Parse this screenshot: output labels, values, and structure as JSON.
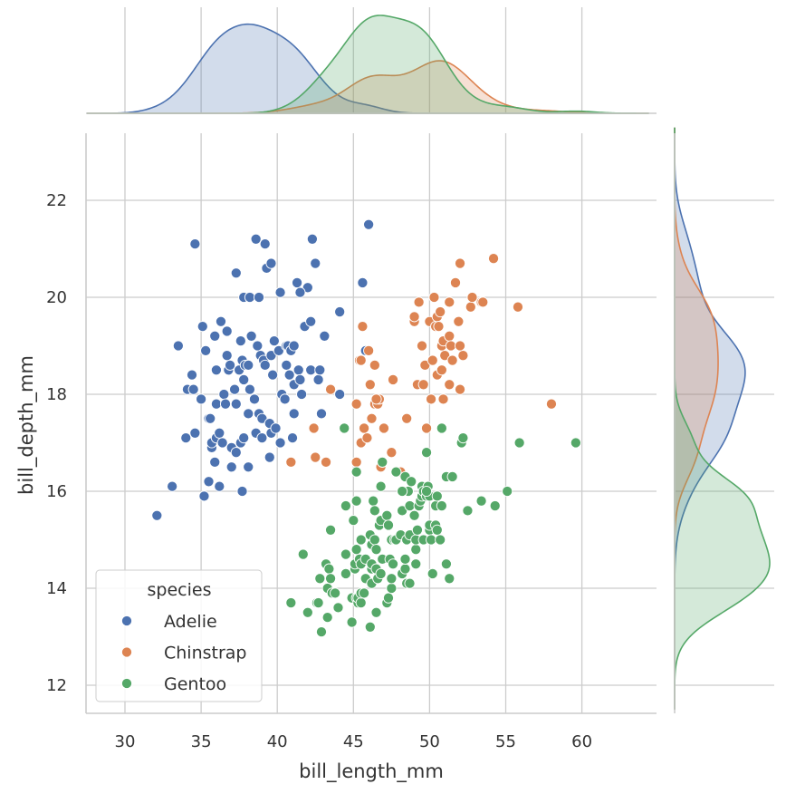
{
  "chart_data": {
    "type": "scatter",
    "xlabel": "bill_length_mm",
    "ylabel": "bill_depth_mm",
    "xlim": [
      27.5,
      64.5
    ],
    "ylim": [
      11.5,
      23.5
    ],
    "x_ticks": [
      30,
      35,
      40,
      45,
      50,
      55,
      60
    ],
    "y_ticks": [
      12,
      14,
      16,
      18,
      20,
      22
    ],
    "grid": true,
    "legend": {
      "title": "species",
      "placement": "lower-left"
    },
    "marginals": {
      "top": "kde of bill_length_mm by species",
      "right": "kde of bill_depth_mm by species"
    },
    "series": [
      {
        "name": "Adelie",
        "color": "#4c72b0",
        "points": [
          [
            32.1,
            15.5
          ],
          [
            33.1,
            16.1
          ],
          [
            33.5,
            19.0
          ],
          [
            34.0,
            17.1
          ],
          [
            34.1,
            18.1
          ],
          [
            34.4,
            18.4
          ],
          [
            34.5,
            18.1
          ],
          [
            34.6,
            17.2
          ],
          [
            34.6,
            21.1
          ],
          [
            35.0,
            17.9
          ],
          [
            35.1,
            19.4
          ],
          [
            35.2,
            15.9
          ],
          [
            35.3,
            18.9
          ],
          [
            35.5,
            16.2
          ],
          [
            35.5,
            17.5
          ],
          [
            35.6,
            17.5
          ],
          [
            35.7,
            16.9
          ],
          [
            35.7,
            17.0
          ],
          [
            35.9,
            16.6
          ],
          [
            35.9,
            19.2
          ],
          [
            36.0,
            17.1
          ],
          [
            36.0,
            17.8
          ],
          [
            36.0,
            18.5
          ],
          [
            36.2,
            16.1
          ],
          [
            36.2,
            17.2
          ],
          [
            36.3,
            19.5
          ],
          [
            36.4,
            17.0
          ],
          [
            36.5,
            18.0
          ],
          [
            36.6,
            17.8
          ],
          [
            36.7,
            18.8
          ],
          [
            36.7,
            19.3
          ],
          [
            36.8,
            18.5
          ],
          [
            36.9,
            18.6
          ],
          [
            37.0,
            16.5
          ],
          [
            37.0,
            16.9
          ],
          [
            37.2,
            18.1
          ],
          [
            37.3,
            16.8
          ],
          [
            37.3,
            17.8
          ],
          [
            37.3,
            20.5
          ],
          [
            37.5,
            18.5
          ],
          [
            37.6,
            17.0
          ],
          [
            37.6,
            19.1
          ],
          [
            37.7,
            16.0
          ],
          [
            37.7,
            18.7
          ],
          [
            37.8,
            17.1
          ],
          [
            37.8,
            18.3
          ],
          [
            37.8,
            20.0
          ],
          [
            37.9,
            18.6
          ],
          [
            38.1,
            16.5
          ],
          [
            38.1,
            17.6
          ],
          [
            38.1,
            18.6
          ],
          [
            38.2,
            18.1
          ],
          [
            38.2,
            20.0
          ],
          [
            38.3,
            19.2
          ],
          [
            38.5,
            17.9
          ],
          [
            38.6,
            17.2
          ],
          [
            38.6,
            21.2
          ],
          [
            38.7,
            19.0
          ],
          [
            38.8,
            17.6
          ],
          [
            38.8,
            20.0
          ],
          [
            38.9,
            18.8
          ],
          [
            39.0,
            17.1
          ],
          [
            39.0,
            17.5
          ],
          [
            39.1,
            18.7
          ],
          [
            39.2,
            18.6
          ],
          [
            39.2,
            21.1
          ],
          [
            39.3,
            20.6
          ],
          [
            39.5,
            16.7
          ],
          [
            39.5,
            17.4
          ],
          [
            39.6,
            17.2
          ],
          [
            39.6,
            18.8
          ],
          [
            39.6,
            20.7
          ],
          [
            39.7,
            18.4
          ],
          [
            39.8,
            19.1
          ],
          [
            39.9,
            17.3
          ],
          [
            40.1,
            18.9
          ],
          [
            40.2,
            17.0
          ],
          [
            40.2,
            20.1
          ],
          [
            40.3,
            18.0
          ],
          [
            40.5,
            17.9
          ],
          [
            40.6,
            18.6
          ],
          [
            40.6,
            19.0
          ],
          [
            40.7,
            19.0
          ],
          [
            40.8,
            18.4
          ],
          [
            40.9,
            16.6
          ],
          [
            40.9,
            18.9
          ],
          [
            41.0,
            17.1
          ],
          [
            41.1,
            17.6
          ],
          [
            41.1,
            18.2
          ],
          [
            41.1,
            19.0
          ],
          [
            41.3,
            20.3
          ],
          [
            41.4,
            18.5
          ],
          [
            41.5,
            18.3
          ],
          [
            41.6,
            18.0
          ],
          [
            41.8,
            19.4
          ],
          [
            42.0,
            20.2
          ],
          [
            42.2,
            18.5
          ],
          [
            42.2,
            19.5
          ],
          [
            42.3,
            21.2
          ],
          [
            42.5,
            20.7
          ],
          [
            42.7,
            18.3
          ],
          [
            42.8,
            18.5
          ],
          [
            42.9,
            17.6
          ],
          [
            43.1,
            19.2
          ],
          [
            44.1,
            18.0
          ],
          [
            44.1,
            19.7
          ],
          [
            45.6,
            20.3
          ],
          [
            45.8,
            18.9
          ],
          [
            46.0,
            21.5
          ],
          [
            41.5,
            20.1
          ]
        ]
      },
      {
        "name": "Chinstrap",
        "color": "#dd8452",
        "points": [
          [
            40.9,
            16.6
          ],
          [
            42.4,
            17.3
          ],
          [
            42.5,
            16.7
          ],
          [
            43.2,
            16.6
          ],
          [
            43.5,
            18.1
          ],
          [
            45.2,
            17.8
          ],
          [
            45.2,
            16.6
          ],
          [
            45.4,
            18.7
          ],
          [
            45.5,
            17.0
          ],
          [
            45.6,
            19.4
          ],
          [
            45.7,
            17.3
          ],
          [
            45.9,
            17.1
          ],
          [
            46.0,
            18.9
          ],
          [
            46.1,
            18.2
          ],
          [
            46.2,
            17.5
          ],
          [
            46.4,
            17.8
          ],
          [
            46.4,
            18.6
          ],
          [
            46.6,
            17.8
          ],
          [
            46.7,
            17.9
          ],
          [
            46.8,
            16.5
          ],
          [
            46.9,
            16.6
          ],
          [
            47.0,
            17.3
          ],
          [
            47.5,
            16.8
          ],
          [
            47.6,
            18.3
          ],
          [
            48.1,
            16.4
          ],
          [
            48.5,
            17.5
          ],
          [
            49.0,
            19.5
          ],
          [
            49.0,
            19.6
          ],
          [
            49.2,
            18.2
          ],
          [
            49.3,
            19.9
          ],
          [
            49.5,
            19.0
          ],
          [
            49.6,
            18.2
          ],
          [
            49.7,
            18.6
          ],
          [
            49.8,
            17.3
          ],
          [
            50.0,
            19.5
          ],
          [
            50.1,
            17.9
          ],
          [
            50.2,
            18.7
          ],
          [
            50.3,
            20.0
          ],
          [
            50.4,
            19.4
          ],
          [
            50.5,
            18.4
          ],
          [
            50.5,
            19.6
          ],
          [
            50.6,
            19.4
          ],
          [
            50.7,
            19.7
          ],
          [
            50.8,
            18.5
          ],
          [
            50.8,
            19.0
          ],
          [
            50.9,
            17.9
          ],
          [
            50.9,
            19.1
          ],
          [
            51.0,
            18.8
          ],
          [
            51.3,
            18.2
          ],
          [
            51.3,
            19.2
          ],
          [
            51.3,
            19.9
          ],
          [
            51.4,
            19.0
          ],
          [
            51.5,
            18.7
          ],
          [
            51.7,
            20.3
          ],
          [
            51.9,
            19.5
          ],
          [
            52.0,
            18.1
          ],
          [
            52.0,
            19.0
          ],
          [
            52.0,
            20.7
          ],
          [
            52.2,
            18.8
          ],
          [
            52.7,
            19.8
          ],
          [
            53.4,
            19.9
          ],
          [
            53.5,
            19.9
          ],
          [
            54.2,
            20.8
          ],
          [
            55.8,
            19.8
          ],
          [
            58.0,
            17.8
          ],
          [
            52.8,
            20.0
          ],
          [
            46.5,
            17.9
          ],
          [
            45.5,
            18.7
          ]
        ]
      },
      {
        "name": "Gentoo",
        "color": "#55a868",
        "points": [
          [
            40.9,
            13.7
          ],
          [
            41.7,
            14.7
          ],
          [
            42.0,
            13.5
          ],
          [
            42.6,
            13.7
          ],
          [
            42.7,
            13.7
          ],
          [
            42.8,
            14.2
          ],
          [
            42.9,
            13.1
          ],
          [
            43.2,
            14.5
          ],
          [
            43.3,
            13.4
          ],
          [
            43.3,
            14.0
          ],
          [
            43.4,
            14.4
          ],
          [
            43.5,
            14.2
          ],
          [
            43.5,
            15.2
          ],
          [
            43.6,
            13.9
          ],
          [
            43.8,
            13.9
          ],
          [
            44.0,
            13.6
          ],
          [
            44.4,
            17.3
          ],
          [
            44.5,
            14.3
          ],
          [
            44.5,
            14.7
          ],
          [
            44.5,
            15.7
          ],
          [
            44.9,
            13.3
          ],
          [
            44.9,
            13.8
          ],
          [
            45.0,
            15.4
          ],
          [
            45.1,
            14.4
          ],
          [
            45.1,
            14.5
          ],
          [
            45.2,
            13.8
          ],
          [
            45.2,
            14.8
          ],
          [
            45.2,
            15.8
          ],
          [
            45.2,
            16.4
          ],
          [
            45.3,
            13.7
          ],
          [
            45.3,
            13.8
          ],
          [
            45.4,
            14.6
          ],
          [
            45.5,
            13.7
          ],
          [
            45.5,
            13.9
          ],
          [
            45.5,
            14.5
          ],
          [
            45.5,
            15.0
          ],
          [
            45.7,
            13.9
          ],
          [
            45.8,
            14.2
          ],
          [
            45.8,
            14.6
          ],
          [
            46.1,
            13.2
          ],
          [
            46.1,
            15.1
          ],
          [
            46.2,
            14.1
          ],
          [
            46.2,
            14.4
          ],
          [
            46.2,
            14.5
          ],
          [
            46.2,
            14.9
          ],
          [
            46.3,
            15.8
          ],
          [
            46.4,
            15.0
          ],
          [
            46.4,
            15.6
          ],
          [
            46.5,
            13.5
          ],
          [
            46.5,
            14.4
          ],
          [
            46.5,
            14.8
          ],
          [
            46.6,
            14.2
          ],
          [
            46.7,
            15.3
          ],
          [
            46.8,
            14.3
          ],
          [
            46.8,
            15.4
          ],
          [
            46.8,
            16.1
          ],
          [
            46.9,
            14.6
          ],
          [
            47.2,
            13.7
          ],
          [
            47.2,
            15.5
          ],
          [
            47.3,
            13.8
          ],
          [
            47.3,
            15.3
          ],
          [
            47.4,
            14.6
          ],
          [
            47.5,
            14.0
          ],
          [
            47.5,
            15.0
          ],
          [
            47.6,
            14.5
          ],
          [
            47.7,
            15.0
          ],
          [
            47.8,
            15.0
          ],
          [
            48.1,
            15.1
          ],
          [
            48.2,
            14.3
          ],
          [
            48.2,
            15.6
          ],
          [
            48.4,
            14.4
          ],
          [
            48.4,
            14.6
          ],
          [
            48.4,
            16.3
          ],
          [
            48.5,
            14.1
          ],
          [
            48.5,
            15.0
          ],
          [
            48.6,
            16.0
          ],
          [
            48.7,
            14.1
          ],
          [
            48.7,
            15.1
          ],
          [
            48.7,
            15.7
          ],
          [
            48.8,
            16.2
          ],
          [
            49.0,
            15.5
          ],
          [
            49.1,
            14.5
          ],
          [
            49.1,
            14.8
          ],
          [
            49.1,
            15.0
          ],
          [
            49.2,
            15.2
          ],
          [
            49.3,
            15.7
          ],
          [
            49.4,
            15.8
          ],
          [
            49.5,
            15.9
          ],
          [
            49.5,
            16.1
          ],
          [
            49.6,
            15.0
          ],
          [
            49.6,
            16.0
          ],
          [
            49.8,
            15.9
          ],
          [
            49.8,
            16.8
          ],
          [
            49.9,
            16.1
          ],
          [
            50.0,
            15.2
          ],
          [
            50.0,
            15.3
          ],
          [
            50.0,
            15.9
          ],
          [
            50.1,
            15.0
          ],
          [
            50.2,
            14.3
          ],
          [
            50.4,
            15.3
          ],
          [
            50.4,
            15.7
          ],
          [
            50.5,
            15.2
          ],
          [
            50.5,
            15.9
          ],
          [
            50.7,
            15.0
          ],
          [
            50.8,
            15.7
          ],
          [
            50.8,
            17.3
          ],
          [
            51.1,
            14.5
          ],
          [
            51.1,
            16.3
          ],
          [
            51.3,
            14.2
          ],
          [
            51.5,
            16.3
          ],
          [
            52.1,
            17.0
          ],
          [
            52.2,
            17.1
          ],
          [
            52.5,
            15.6
          ],
          [
            53.4,
            15.8
          ],
          [
            54.3,
            15.7
          ],
          [
            55.1,
            16.0
          ],
          [
            55.9,
            17.0
          ],
          [
            59.6,
            17.0
          ],
          [
            47.5,
            14.2
          ],
          [
            46.9,
            16.6
          ],
          [
            47.8,
            16.4
          ],
          [
            49.8,
            16.0
          ],
          [
            48.2,
            16.0
          ]
        ]
      }
    ]
  }
}
